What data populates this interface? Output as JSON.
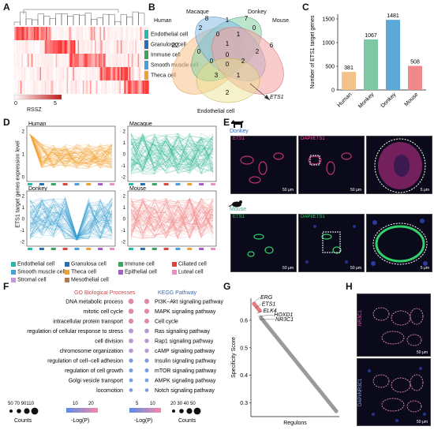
{
  "panels": [
    "A",
    "B",
    "C",
    "D",
    "E",
    "F",
    "G",
    "H"
  ],
  "panelA": {
    "legend_items": [
      {
        "label": "Endothelial cell",
        "color": "#2ab7a9"
      },
      {
        "label": "Granulosa cell",
        "color": "#2d6db5"
      },
      {
        "label": "Immune cell",
        "color": "#3ba55c"
      },
      {
        "label": "Smooth muscle cell",
        "color": "#46a0dc"
      },
      {
        "label": "Theca cell",
        "color": "#f0a030"
      }
    ],
    "scale_min": "0",
    "scale_max": "5",
    "scale_label": "RSSZ"
  },
  "panelB": {
    "sets": [
      "Human",
      "Macaque",
      "Donkey",
      "Mouse",
      "Endothelial cell"
    ],
    "numbers": [
      "22",
      "2",
      "8",
      "1",
      "7",
      "0",
      "6",
      "0",
      "1",
      "0",
      "1",
      "2",
      "0",
      "2",
      "0",
      "3",
      "1",
      "0",
      "2"
    ],
    "arrow_label": "ETS1"
  },
  "panelC": {
    "ylabel": "Number of ETS1 target genes",
    "chart_data": {
      "type": "bar",
      "categories": [
        "Human",
        "Monkey",
        "Donkey",
        "Mouse"
      ],
      "values": [
        381,
        1067,
        1481,
        508
      ],
      "colors": [
        "#f6c28b",
        "#7ec8a5",
        "#5aa9d6",
        "#f08a8a"
      ],
      "ylim": [
        0,
        1600
      ],
      "title": "",
      "xlabel": "",
      "ylabel": "Number of ETS1 target genes"
    }
  },
  "panelD": {
    "ylabel": "ETS1 target genes expression level",
    "plots": [
      {
        "title": "Human",
        "color": "#f2a030",
        "ticks": [
          "0",
          "1",
          "2"
        ]
      },
      {
        "title": "Macaque",
        "color": "#2ab38f",
        "ticks": [
          "-2",
          "-1",
          "0",
          "1",
          "2"
        ]
      },
      {
        "title": "Donkey",
        "color": "#3a9fd0",
        "ticks": [
          "-2",
          "-1",
          "0",
          "1",
          "2"
        ]
      },
      {
        "title": "Mouse",
        "color": "#f08080",
        "ticks": [
          "-2",
          "-1",
          "0",
          "1",
          "2"
        ]
      }
    ],
    "legend": [
      {
        "label": "Endothelial cell",
        "color": "#2ab7a9"
      },
      {
        "label": "Granulosa cell",
        "color": "#2d6db5"
      },
      {
        "label": "Immune cell",
        "color": "#3ba55c"
      },
      {
        "label": "Ciliated cell",
        "color": "#d9443c"
      },
      {
        "label": "Smooth muscle cell",
        "color": "#46a0dc"
      },
      {
        "label": "Theca cell",
        "color": "#f0a030"
      },
      {
        "label": "Epithelial cell",
        "color": "#a060c8"
      },
      {
        "label": "Luteal cell",
        "color": "#e890c0"
      },
      {
        "label": "Stromal cell",
        "color": "#c896d8"
      },
      {
        "label": "Mesothelial cell",
        "color": "#b07a50"
      }
    ]
  },
  "panelE": {
    "donkey_label": "Donkey",
    "mouse_label": "Mouse",
    "row1_labels": [
      "ETS1",
      "DAPI/ETS1",
      ""
    ],
    "row2_labels": [
      "ETS1",
      "DAPI/ETS1",
      ""
    ],
    "scales": [
      "50 μm",
      "50 μm",
      "5 μm"
    ]
  },
  "panelF": {
    "go_title": "GO Biological Processes",
    "kegg_title": "KEGG Pathway",
    "go_terms": [
      "DNA metabolic process",
      "mitotic cell cycle",
      "intracellular protein transport",
      "regulation of cellular response to stress",
      "cell division",
      "chromosome organization",
      "regulation of cell−cell adhesion",
      "regulation of cell growth",
      "Golgi vesicle transport",
      "locomotion"
    ],
    "kegg_terms": [
      "PI3K−Akt signaling pathway",
      "MAPK signaling pathway",
      "Cell cycle",
      "Ras signaling pathway",
      "Rap1 signaling pathway",
      "cAMP signaling pathway",
      "Insulin signaling pathway",
      "mTOR signaling pathway",
      "AMPK signaling pathway",
      "Notch signaling pathway"
    ],
    "go_counts_ticks": "50 70 90110",
    "kegg_counts_ticks": "20 30 40 50",
    "counts_label": "Counts",
    "go_color_ticks": [
      "10",
      "20"
    ],
    "kegg_color_ticks": [
      "5",
      "10"
    ],
    "color_label": "-Log(P)"
  },
  "panelG": {
    "ylabel": "Specificity Score",
    "xlabel": "Regulons",
    "yticks": [
      "0.6",
      "0.5",
      "0.4",
      "0.3"
    ],
    "labels": [
      "ERG",
      "ETS1",
      "ELK4",
      "HOXD1",
      "NR3C1"
    ]
  },
  "panelH": {
    "labels": [
      "NR3C1",
      "DAPI/NR3C1"
    ],
    "scale": "50 μm"
  }
}
